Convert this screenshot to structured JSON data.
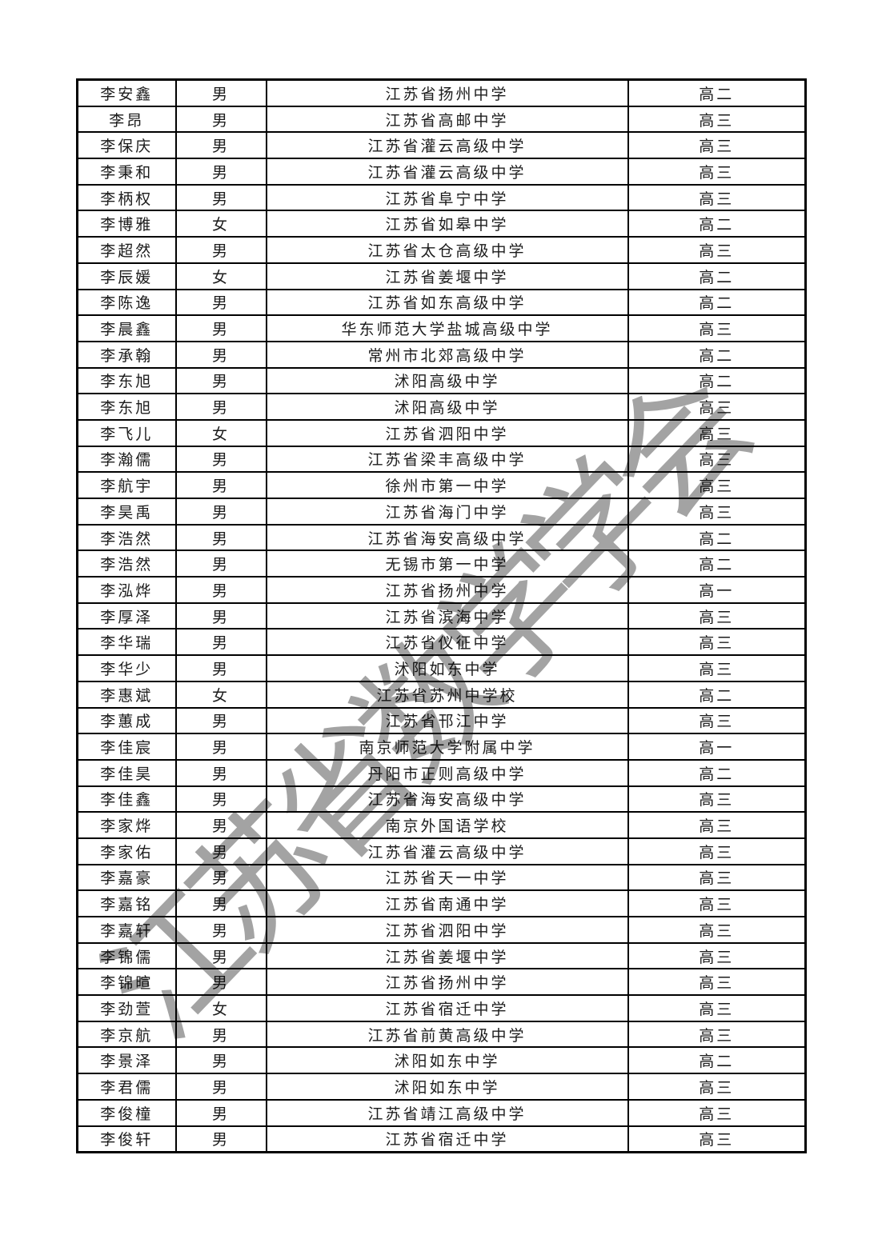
{
  "page": {
    "background_color": "#ffffff",
    "text_color": "#1b1b1b",
    "border_color": "#000000"
  },
  "watermark": {
    "text": "江苏省数学学会",
    "color": "#969696"
  },
  "table": {
    "rows": [
      {
        "name": "李安鑫",
        "gender": "男",
        "school": "江苏省扬州中学",
        "grade": "高二"
      },
      {
        "name": "李昂",
        "gender": "男",
        "school": "江苏省高邮中学",
        "grade": "高三"
      },
      {
        "name": "李保庆",
        "gender": "男",
        "school": "江苏省灌云高级中学",
        "grade": "高三"
      },
      {
        "name": "李秉和",
        "gender": "男",
        "school": "江苏省灌云高级中学",
        "grade": "高三"
      },
      {
        "name": "李柄权",
        "gender": "男",
        "school": "江苏省阜宁中学",
        "grade": "高三"
      },
      {
        "name": "李博雅",
        "gender": "女",
        "school": "江苏省如皋中学",
        "grade": "高二"
      },
      {
        "name": "李超然",
        "gender": "男",
        "school": "江苏省太仓高级中学",
        "grade": "高三"
      },
      {
        "name": "李辰媛",
        "gender": "女",
        "school": "江苏省姜堰中学",
        "grade": "高二"
      },
      {
        "name": "李陈逸",
        "gender": "男",
        "school": "江苏省如东高级中学",
        "grade": "高二"
      },
      {
        "name": "李晨鑫",
        "gender": "男",
        "school": "华东师范大学盐城高级中学",
        "grade": "高三"
      },
      {
        "name": "李承翰",
        "gender": "男",
        "school": "常州市北郊高级中学",
        "grade": "高二"
      },
      {
        "name": "李东旭",
        "gender": "男",
        "school": "沭阳高级中学",
        "grade": "高二"
      },
      {
        "name": "李东旭",
        "gender": "男",
        "school": "沭阳高级中学",
        "grade": "高三"
      },
      {
        "name": "李飞儿",
        "gender": "女",
        "school": "江苏省泗阳中学",
        "grade": "高三"
      },
      {
        "name": "李瀚儒",
        "gender": "男",
        "school": "江苏省梁丰高级中学",
        "grade": "高三"
      },
      {
        "name": "李航宇",
        "gender": "男",
        "school": "徐州市第一中学",
        "grade": "高三"
      },
      {
        "name": "李昊禹",
        "gender": "男",
        "school": "江苏省海门中学",
        "grade": "高三"
      },
      {
        "name": "李浩然",
        "gender": "男",
        "school": "江苏省海安高级中学",
        "grade": "高二"
      },
      {
        "name": "李浩然",
        "gender": "男",
        "school": "无锡市第一中学",
        "grade": "高二"
      },
      {
        "name": "李泓烨",
        "gender": "男",
        "school": "江苏省扬州中学",
        "grade": "高一"
      },
      {
        "name": "李厚泽",
        "gender": "男",
        "school": "江苏省滨海中学",
        "grade": "高三"
      },
      {
        "name": "李华瑞",
        "gender": "男",
        "school": "江苏省仪征中学",
        "grade": "高三"
      },
      {
        "name": "李华少",
        "gender": "男",
        "school": "沭阳如东中学",
        "grade": "高三"
      },
      {
        "name": "李惠斌",
        "gender": "女",
        "school": "江苏省苏州中学校",
        "grade": "高二"
      },
      {
        "name": "李蕙成",
        "gender": "男",
        "school": "江苏省邗江中学",
        "grade": "高三"
      },
      {
        "name": "李佳宸",
        "gender": "男",
        "school": "南京师范大学附属中学",
        "grade": "高一"
      },
      {
        "name": "李佳昊",
        "gender": "男",
        "school": "丹阳市正则高级中学",
        "grade": "高二"
      },
      {
        "name": "李佳鑫",
        "gender": "男",
        "school": "江苏省海安高级中学",
        "grade": "高三"
      },
      {
        "name": "李家烨",
        "gender": "男",
        "school": "南京外国语学校",
        "grade": "高三"
      },
      {
        "name": "李家佑",
        "gender": "男",
        "school": "江苏省灌云高级中学",
        "grade": "高三"
      },
      {
        "name": "李嘉豪",
        "gender": "男",
        "school": "江苏省天一中学",
        "grade": "高三"
      },
      {
        "name": "李嘉铭",
        "gender": "男",
        "school": "江苏省南通中学",
        "grade": "高三"
      },
      {
        "name": "李嘉轩",
        "gender": "男",
        "school": "江苏省泗阳中学",
        "grade": "高三"
      },
      {
        "name": "李锦儒",
        "gender": "男",
        "school": "江苏省姜堰中学",
        "grade": "高三"
      },
      {
        "name": "李锦暄",
        "gender": "男",
        "school": "江苏省扬州中学",
        "grade": "高三"
      },
      {
        "name": "李劲萱",
        "gender": "女",
        "school": "江苏省宿迁中学",
        "grade": "高三"
      },
      {
        "name": "李京航",
        "gender": "男",
        "school": "江苏省前黄高级中学",
        "grade": "高三"
      },
      {
        "name": "李景泽",
        "gender": "男",
        "school": "沭阳如东中学",
        "grade": "高二"
      },
      {
        "name": "李君儒",
        "gender": "男",
        "school": "沭阳如东中学",
        "grade": "高三"
      },
      {
        "name": "李俊橦",
        "gender": "男",
        "school": "江苏省靖江高级中学",
        "grade": "高三"
      },
      {
        "name": "李俊轩",
        "gender": "男",
        "school": "江苏省宿迁中学",
        "grade": "高三"
      }
    ]
  }
}
